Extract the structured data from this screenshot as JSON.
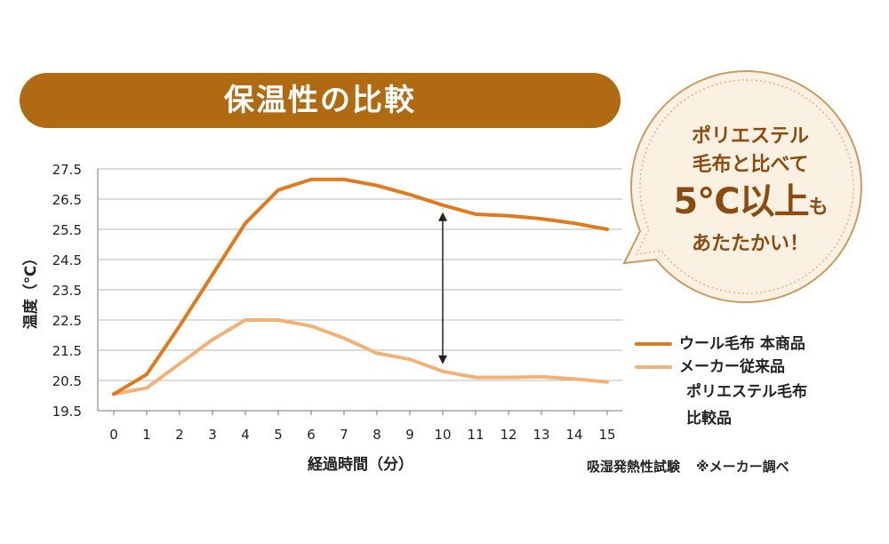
{
  "title": "保温性の比較",
  "bubble": {
    "line1": "ポリエステル",
    "line2": "毛布と比べて",
    "line3_main": "5°C以上",
    "line3_suffix": "も",
    "line4": "あたたかい！"
  },
  "legend": {
    "series1": "ウール毛布 本商品",
    "series2_line1": "メーカー従来品",
    "series2_line2": "ポリエステル毛布",
    "series2_line3": "比較品"
  },
  "footnote": {
    "test": "吸湿発熱性試験",
    "source": "※メーカー調べ"
  },
  "colors": {
    "banner": "#b06a12",
    "series1": "#e07a1e",
    "series2": "#f0b277",
    "bubble_fill": "#fbf1e3",
    "bubble_stroke": "#c99b62",
    "text_accent": "#8a4c10"
  },
  "chart_data": {
    "type": "line",
    "xlabel": "経過時間（分）",
    "ylabel": "温度（℃）",
    "x": [
      0,
      1,
      2,
      3,
      4,
      5,
      6,
      7,
      8,
      9,
      10,
      11,
      12,
      13,
      14,
      15
    ],
    "xticks": [
      "0",
      "1",
      "2",
      "3",
      "4",
      "5",
      "6",
      "7",
      "8",
      "9",
      "10",
      "11",
      "12",
      "13",
      "14",
      "15"
    ],
    "yticks": [
      "19.5",
      "20.5",
      "21.5",
      "22.5",
      "23.5",
      "24.5",
      "25.5",
      "26.5",
      "27.5"
    ],
    "ylim": [
      19.5,
      27.5
    ],
    "grid": true,
    "legend_position": "right",
    "series": [
      {
        "name": "ウール毛布 本商品",
        "color": "#e07a1e",
        "values": [
          20.05,
          20.7,
          22.3,
          24.0,
          25.7,
          26.8,
          27.15,
          27.15,
          26.95,
          26.65,
          26.3,
          26.0,
          25.95,
          25.85,
          25.7,
          25.5
        ]
      },
      {
        "name": "メーカー従来品 ポリエステル毛布 比較品",
        "color": "#f0b277",
        "values": [
          20.05,
          20.25,
          21.05,
          21.85,
          22.5,
          22.5,
          22.3,
          21.9,
          21.4,
          21.2,
          20.8,
          20.6,
          20.6,
          20.62,
          20.55,
          20.45
        ]
      }
    ],
    "annotation": {
      "type": "double-arrow",
      "x": 10,
      "from": 20.8,
      "to": 26.3
    }
  }
}
